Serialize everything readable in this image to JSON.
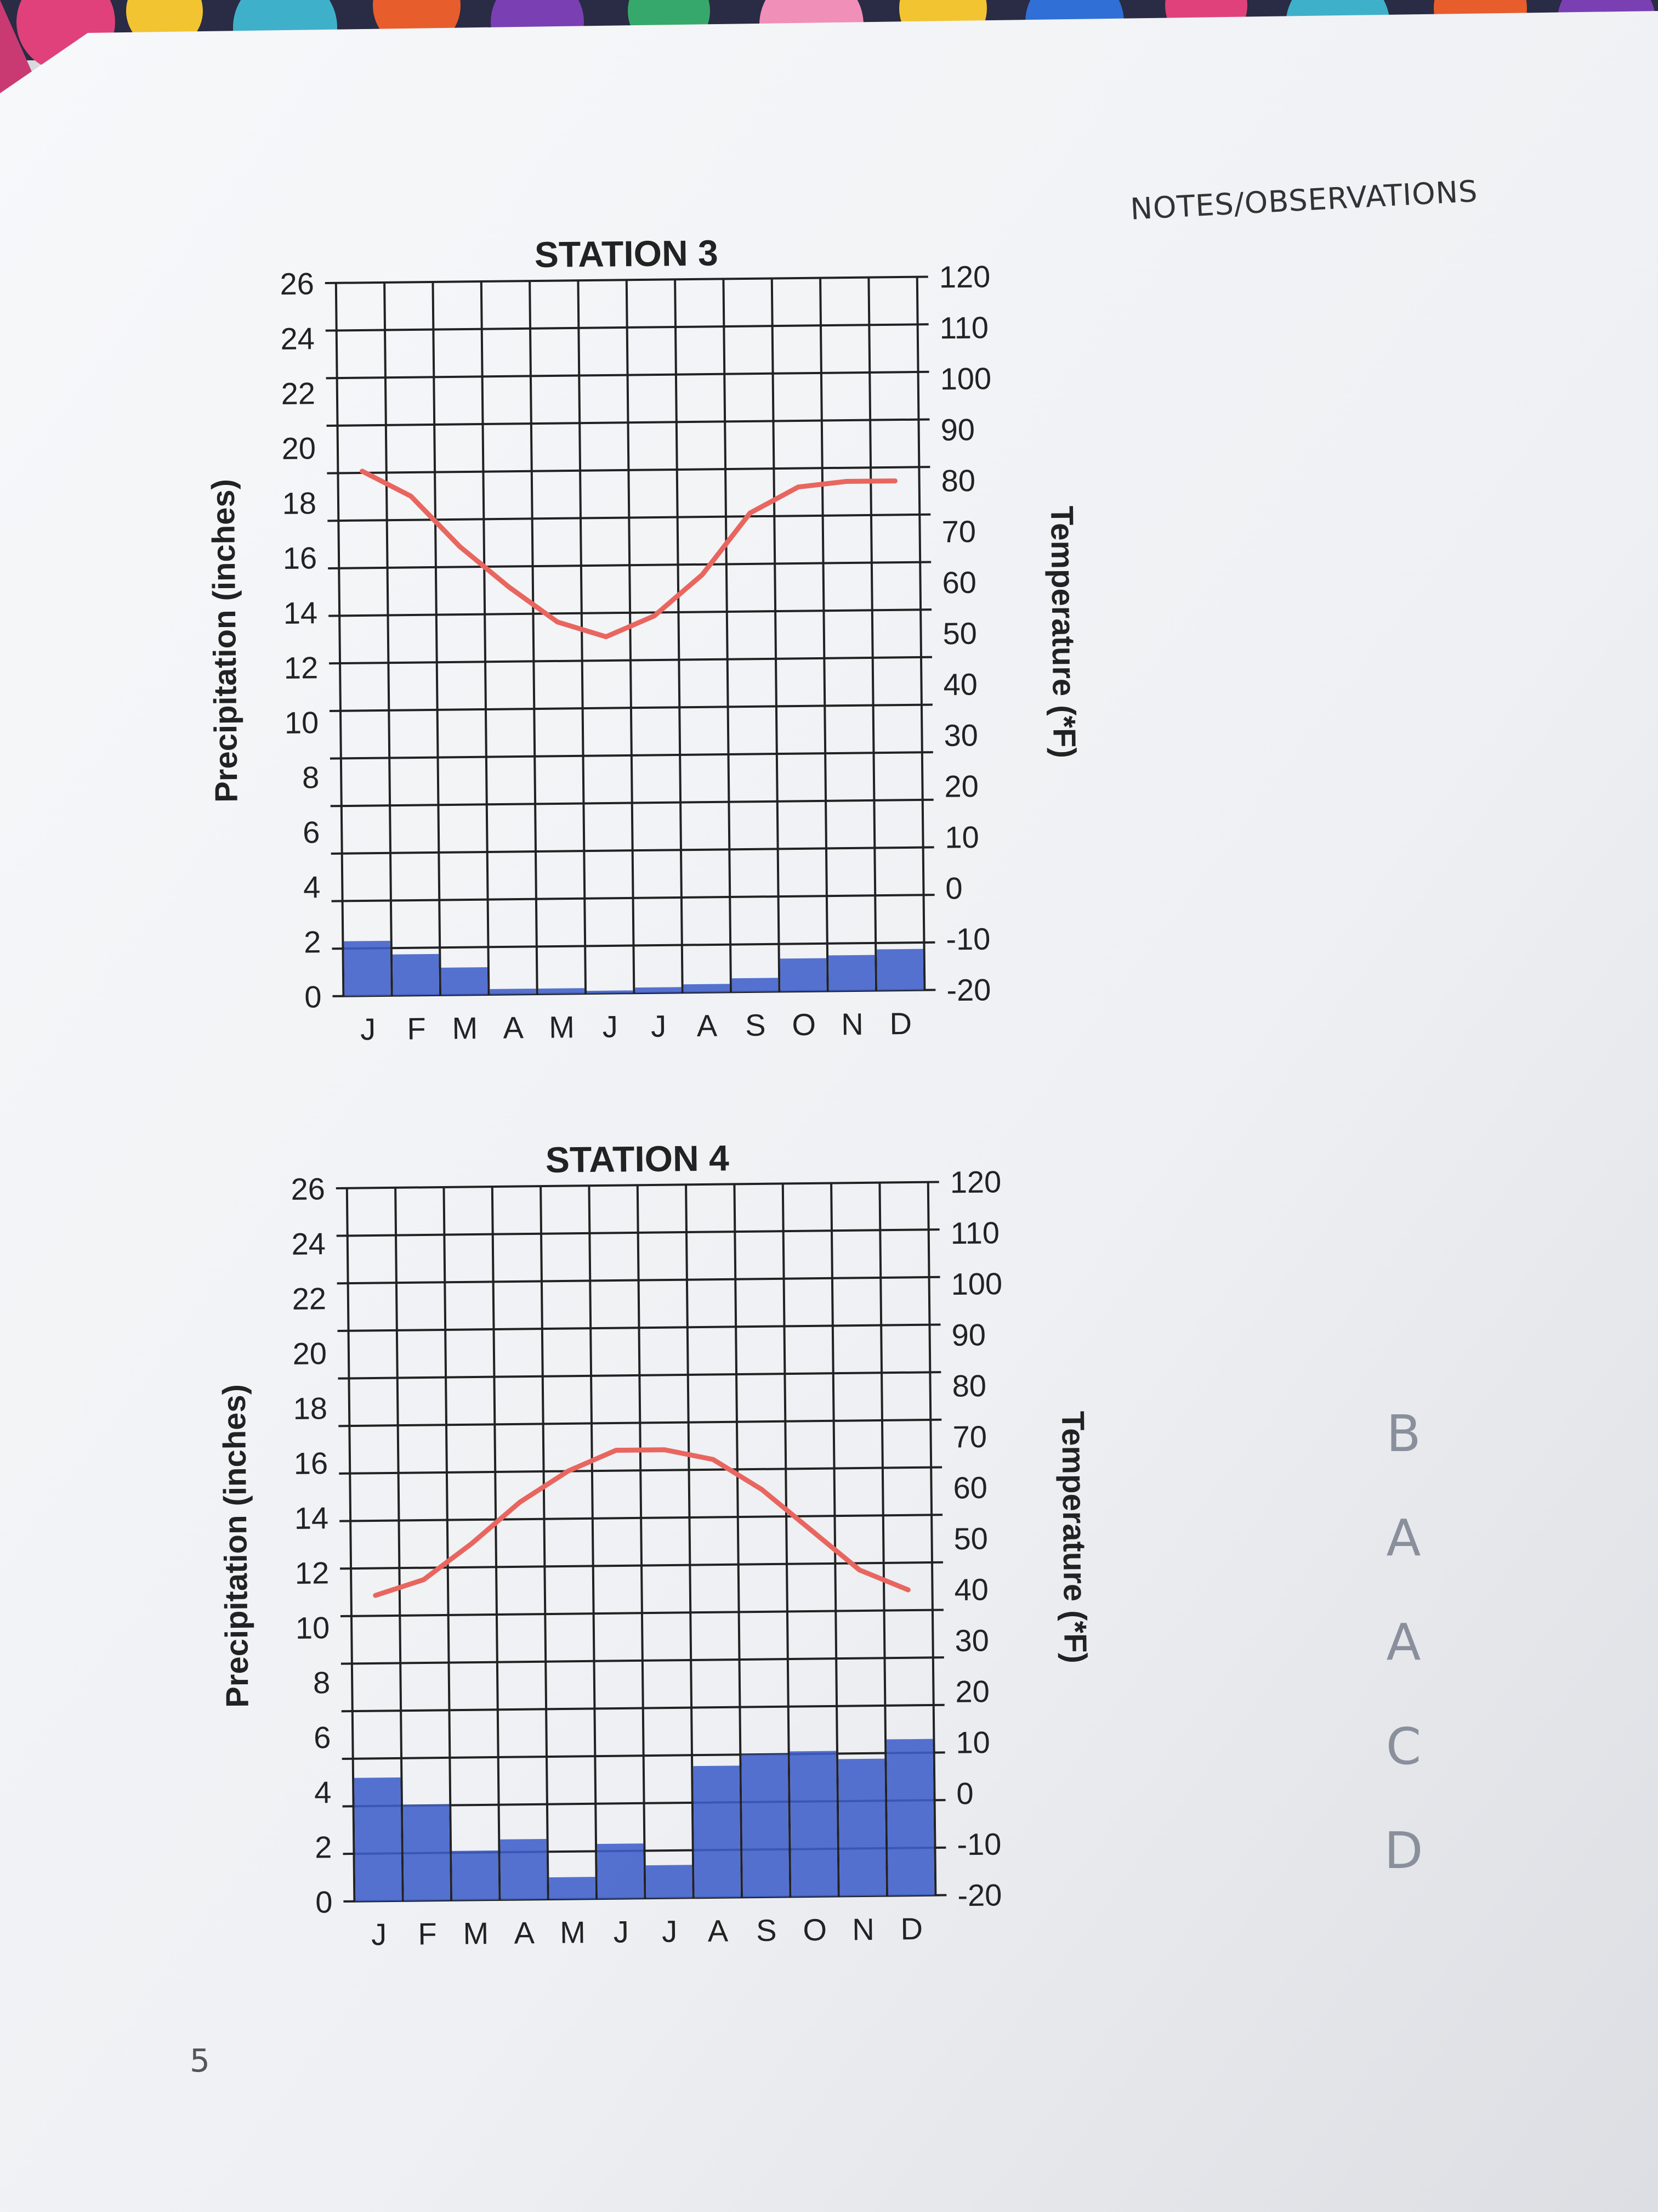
{
  "notes": {
    "title": "NOTES/OBSERVATIONS"
  },
  "page_number": "5",
  "handwritten_answers": [
    "B",
    "A",
    "A",
    "C",
    "D"
  ],
  "colors": {
    "temperature_line": "#e8665f",
    "precipitation_fill": "#3f5ec9",
    "grid": "#222222",
    "paper": "#f4f5f7"
  },
  "chart_data": [
    {
      "type": "bar",
      "title": "STATION 3",
      "categories": [
        "J",
        "F",
        "M",
        "A",
        "M",
        "J",
        "J",
        "A",
        "S",
        "O",
        "N",
        "D"
      ],
      "ylabel": "Precipitation (inches)",
      "y2label": "Temperature (*F)",
      "ylim": [
        0,
        26
      ],
      "y_ticks": [
        "0",
        "2",
        "4",
        "6",
        "8",
        "10",
        "12",
        "14",
        "16",
        "18",
        "20",
        "22",
        "24",
        "26"
      ],
      "y2lim": [
        -20,
        120
      ],
      "y2_ticks": [
        "-20",
        "-10",
        "0",
        "10",
        "20",
        "30",
        "40",
        "50",
        "60",
        "70",
        "80",
        "90",
        "100",
        "110",
        "120"
      ],
      "grid": true,
      "series": [
        {
          "type": "bar",
          "axis": "left",
          "values": [
            2,
            1.5,
            1,
            0.2,
            0.2,
            0.1,
            0.2,
            0.3,
            0.5,
            1.2,
            1.3,
            1.5
          ]
        },
        {
          "type": "line",
          "axis": "right",
          "values": [
            83,
            78,
            68,
            60,
            53,
            50,
            54,
            62,
            74,
            79,
            80,
            80
          ]
        }
      ]
    },
    {
      "type": "bar",
      "title": "STATION 4",
      "categories": [
        "J",
        "F",
        "M",
        "A",
        "M",
        "J",
        "J",
        "A",
        "S",
        "O",
        "N",
        "D"
      ],
      "ylabel": "Precipitation (inches)",
      "y2label": "Temperature (*F)",
      "ylim": [
        0,
        26
      ],
      "y_ticks": [
        "0",
        "2",
        "4",
        "6",
        "8",
        "10",
        "12",
        "14",
        "16",
        "18",
        "20",
        "22",
        "24",
        "26"
      ],
      "y2lim": [
        -20,
        120
      ],
      "y2_ticks": [
        "-20",
        "-10",
        "0",
        "10",
        "20",
        "30",
        "40",
        "50",
        "60",
        "70",
        "80",
        "90",
        "100",
        "110",
        "120"
      ],
      "grid": true,
      "series": [
        {
          "type": "bar",
          "axis": "left",
          "values": [
            4.5,
            3.5,
            1.8,
            2.2,
            0.8,
            2.0,
            1.2,
            4.8,
            5.2,
            5.3,
            5.0,
            5.7
          ]
        },
        {
          "type": "line",
          "axis": "right",
          "values": [
            40,
            43,
            50,
            58,
            64,
            68,
            68,
            66,
            60,
            52,
            44,
            40
          ]
        }
      ]
    }
  ]
}
